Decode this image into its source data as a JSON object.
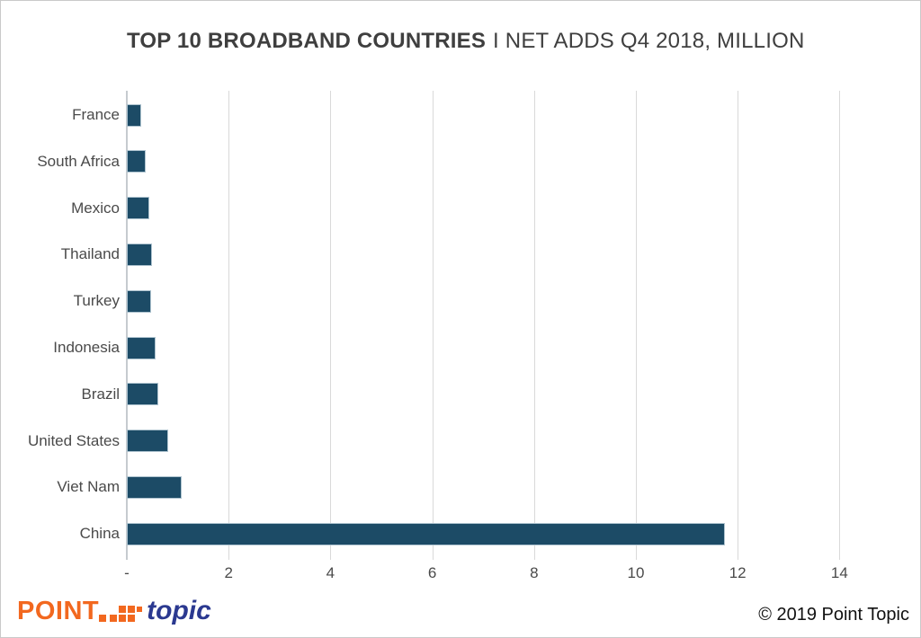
{
  "title": {
    "bold": "TOP 10 BROADBAND COUNTRIES",
    "regular": "I NET ADDS Q4 2018, MILLION"
  },
  "chart_data": {
    "type": "bar",
    "orientation": "horizontal",
    "title": "TOP 10 BROADBAND COUNTRIES I NET ADDS Q4 2018, MILLION",
    "categories": [
      "France",
      "South Africa",
      "Mexico",
      "Thailand",
      "Turkey",
      "Indonesia",
      "Brazil",
      "United States",
      "Viet Nam",
      "China"
    ],
    "values": [
      0.28,
      0.37,
      0.44,
      0.49,
      0.48,
      0.57,
      0.61,
      0.81,
      1.07,
      11.75
    ],
    "xlabel": "",
    "ylabel": "",
    "xlim": [
      0,
      15
    ],
    "x_ticks": [
      {
        "value": 0,
        "label": "-"
      },
      {
        "value": 2,
        "label": "2"
      },
      {
        "value": 4,
        "label": "4"
      },
      {
        "value": 6,
        "label": "6"
      },
      {
        "value": 8,
        "label": "8"
      },
      {
        "value": 10,
        "label": "10"
      },
      {
        "value": 12,
        "label": "12"
      },
      {
        "value": 14,
        "label": "14"
      }
    ],
    "grid": true,
    "legend": false,
    "colors": {
      "bar_fill": "#1C4B66",
      "bar_border": "#AEC3CF",
      "gridline": "#D9D9D9",
      "axis_line": "#C6CBCF",
      "label_text": "#4A4A4A",
      "title_text": "#3F3F3F"
    }
  },
  "footer": {
    "logo": {
      "point": "POINT",
      "topic": "topic",
      "orange": "#F2681F",
      "navy": "#2B3990"
    },
    "copyright": "© 2019 Point Topic"
  }
}
